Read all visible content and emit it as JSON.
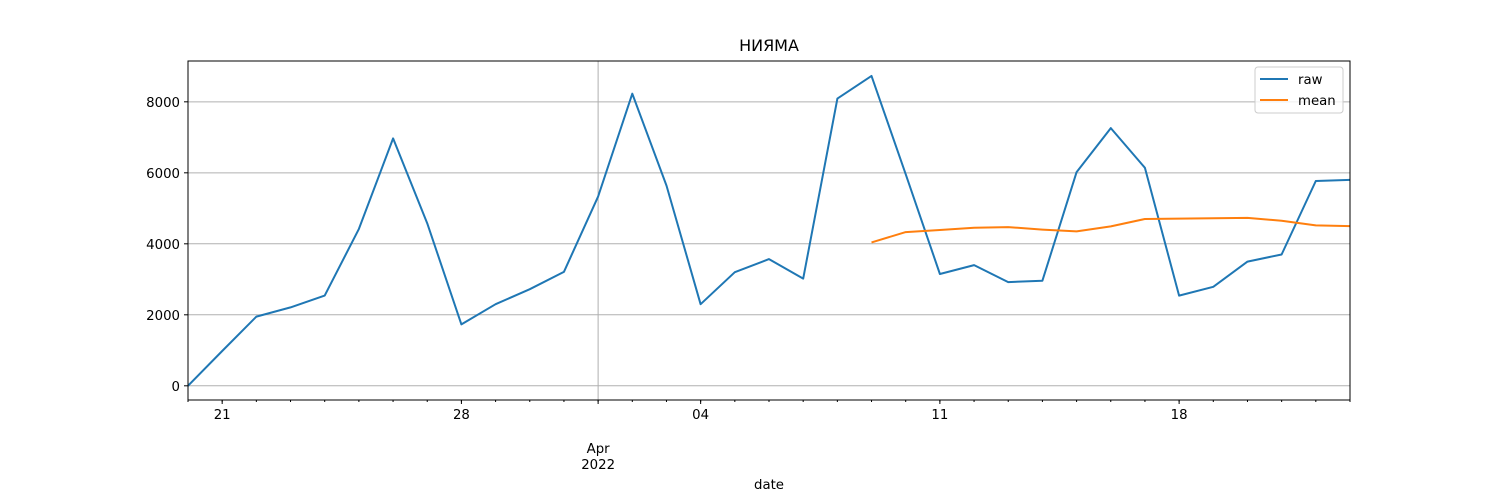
{
  "chart_data": {
    "type": "line",
    "title": "НИЯМА",
    "xlabel": "date",
    "ylabel": "",
    "x": [
      "2022-03-20",
      "2022-03-21",
      "2022-03-22",
      "2022-03-23",
      "2022-03-24",
      "2022-03-25",
      "2022-03-26",
      "2022-03-27",
      "2022-03-28",
      "2022-03-29",
      "2022-03-30",
      "2022-03-31",
      "2022-04-01",
      "2022-04-02",
      "2022-04-03",
      "2022-04-04",
      "2022-04-05",
      "2022-04-06",
      "2022-04-07",
      "2022-04-08",
      "2022-04-09",
      "2022-04-10",
      "2022-04-11",
      "2022-04-12",
      "2022-04-13",
      "2022-04-14",
      "2022-04-15",
      "2022-04-16",
      "2022-04-17",
      "2022-04-18",
      "2022-04-19",
      "2022-04-20",
      "2022-04-21",
      "2022-04-22",
      "2022-04-23"
    ],
    "xlim": [
      "2022-03-20",
      "2022-04-23"
    ],
    "ylim": [
      -400,
      9150
    ],
    "yticks": [
      0,
      2000,
      4000,
      6000,
      8000
    ],
    "xticks_major": [
      {
        "date": "2022-03-21",
        "label": "21"
      },
      {
        "date": "2022-03-28",
        "label": "28"
      },
      {
        "date": "2022-04-04",
        "label": "04"
      },
      {
        "date": "2022-04-11",
        "label": "11"
      },
      {
        "date": "2022-04-18",
        "label": "18"
      }
    ],
    "month_marker": {
      "date": "2022-04-01",
      "label": "Apr",
      "sublabel": "2022"
    },
    "grid": true,
    "legend": "upper right",
    "series": [
      {
        "name": "raw",
        "color": "#1f77b4",
        "values": [
          0,
          980,
          1950,
          2210,
          2540,
          4420,
          6970,
          4580,
          1730,
          2300,
          2720,
          3210,
          5330,
          8230,
          5640,
          2300,
          3200,
          3570,
          3020,
          8090,
          8730,
          5960,
          3150,
          3400,
          2920,
          2960,
          6020,
          7260,
          6140,
          2540,
          2790,
          3500,
          3700,
          5770,
          5800
        ]
      },
      {
        "name": "mean",
        "color": "#ff7f0e",
        "values": [
          null,
          null,
          null,
          null,
          null,
          null,
          null,
          null,
          null,
          null,
          null,
          null,
          null,
          null,
          null,
          null,
          null,
          null,
          null,
          null,
          4040,
          4330,
          4390,
          4450,
          4470,
          4400,
          4350,
          4490,
          4700,
          4710,
          4720,
          4730,
          4650,
          4520,
          4500
        ]
      }
    ]
  }
}
